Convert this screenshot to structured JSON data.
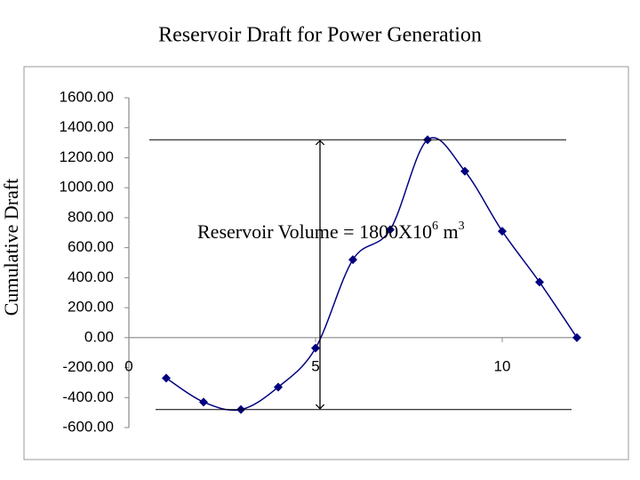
{
  "chart_data": {
    "type": "line",
    "title": "Reservoir Draft for Power Generation",
    "y_label": "Cumulative Draft",
    "annotation": {
      "text": "Reservoir Volume = 1800X10",
      "exp1": "6",
      "unit": " m",
      "exp2": "3"
    },
    "x": [
      1,
      2,
      3,
      4,
      5,
      6,
      7,
      8,
      9,
      10,
      11,
      12
    ],
    "series": [
      {
        "color": "#000080",
        "values": [
          -270,
          -430,
          -480,
          -330,
          -70,
          520,
          720,
          1320,
          1110,
          710,
          370,
          0
        ]
      }
    ],
    "xlim": [
      0,
      12
    ],
    "xticks": [
      0,
      5,
      10
    ],
    "ylim": [
      -600,
      1600
    ],
    "yticks": [
      {
        "value": -600,
        "label": "-600.00"
      },
      {
        "value": -400,
        "label": "-400.00"
      },
      {
        "value": -200,
        "label": "-200.00"
      },
      {
        "value": 0,
        "label": "0.00"
      },
      {
        "value": 200,
        "label": "200.00"
      },
      {
        "value": 400,
        "label": "400.00"
      },
      {
        "value": 600,
        "label": "600.00"
      },
      {
        "value": 800,
        "label": "800.00"
      },
      {
        "value": 1000,
        "label": "1000.00"
      },
      {
        "value": 1200,
        "label": "1200.00"
      },
      {
        "value": 1400,
        "label": "1400.00"
      },
      {
        "value": 1600,
        "label": "1600.00"
      }
    ],
    "grid": false
  }
}
